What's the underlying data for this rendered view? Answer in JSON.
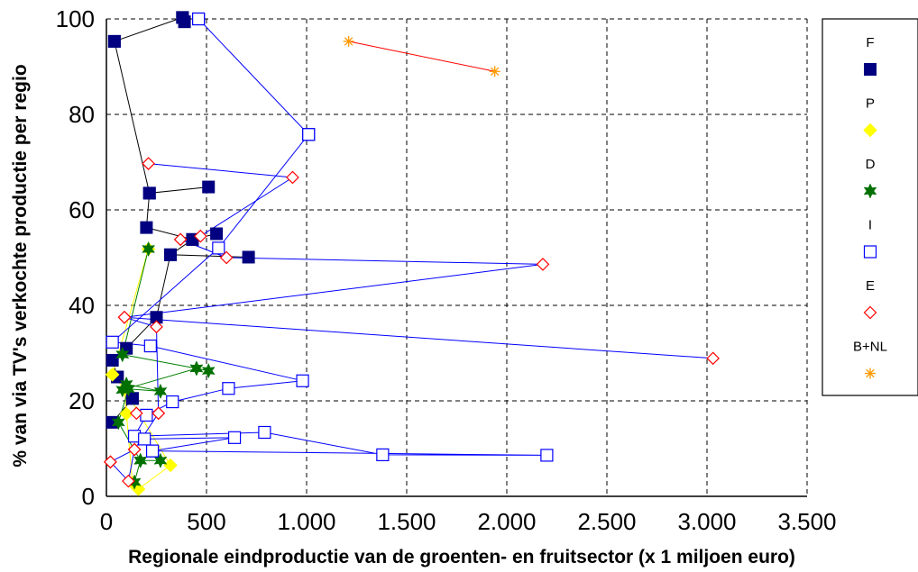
{
  "chart_data": {
    "type": "scatter",
    "title": "",
    "xlabel": "Regionale eindproductie van de groenten- en fruitsector (x 1 miljoen euro)",
    "ylabel": "% van via TV's verkochte productie per regio",
    "xlim": [
      0,
      3500
    ],
    "ylim": [
      0,
      100
    ],
    "x_ticks": [
      0,
      500,
      1000,
      1500,
      2000,
      2500,
      3000,
      3500
    ],
    "x_tick_labels": [
      "0",
      "500",
      "1.000",
      "1.500",
      "2.000",
      "2.500",
      "3.000",
      "3.500"
    ],
    "y_ticks": [
      0,
      20,
      40,
      60,
      80,
      100
    ],
    "y_tick_labels": [
      "0",
      "20",
      "40",
      "60",
      "80",
      "100"
    ],
    "grid": "dashed",
    "legend_position": "right",
    "series": [
      {
        "name": "F",
        "marker": "filled-square",
        "color": "#000080",
        "line_color": "#000000",
        "points": [
          [
            40,
            95.3
          ],
          [
            380,
            100.3
          ],
          [
            390,
            99.4
          ],
          [
            380,
            100.3
          ],
          [
            40,
            95.3
          ],
          [
            215,
            63.5
          ],
          [
            510,
            64.8
          ],
          [
            215,
            63.5
          ],
          [
            200,
            56.3
          ],
          [
            430,
            53.8
          ],
          [
            550,
            55.0
          ],
          [
            430,
            53.8
          ],
          [
            320,
            50.6
          ],
          [
            710,
            50.1
          ],
          [
            320,
            50.6
          ],
          [
            250,
            37.5
          ],
          [
            100,
            31.0
          ],
          [
            30,
            28.5
          ],
          [
            55,
            25.0
          ],
          [
            130,
            20.5
          ],
          [
            30,
            15.5
          ],
          [
            130,
            20.5
          ],
          [
            55,
            25.0
          ]
        ]
      },
      {
        "name": "P",
        "marker": "diamond",
        "color": "#FFFF00",
        "line_color": "#FFFF00",
        "points": [
          [
            30,
            25.5
          ],
          [
            210,
            51.8
          ],
          [
            30,
            25.5
          ],
          [
            90,
            22.5
          ],
          [
            320,
            6.5
          ],
          [
            160,
            1.5
          ],
          [
            130,
            2.8
          ],
          [
            100,
            17.3
          ],
          [
            90,
            22.5
          ]
        ]
      },
      {
        "name": "D",
        "marker": "star6",
        "color": "#007000",
        "line_color": "#008000",
        "points": [
          [
            80,
            29.7
          ],
          [
            210,
            51.8
          ],
          [
            80,
            29.7
          ],
          [
            450,
            26.8
          ],
          [
            510,
            26.3
          ],
          [
            450,
            26.8
          ],
          [
            80,
            22.3
          ],
          [
            100,
            23.5
          ],
          [
            270,
            22.0
          ],
          [
            110,
            22.5
          ],
          [
            60,
            15.5
          ],
          [
            170,
            7.5
          ],
          [
            140,
            3.0
          ],
          [
            170,
            7.5
          ],
          [
            270,
            7.5
          ],
          [
            170,
            7.5
          ]
        ]
      },
      {
        "name": "I",
        "marker": "open-square",
        "color": "#0000FF",
        "line_color": "#0000FF",
        "points": [
          [
            460,
            100.0
          ],
          [
            1010,
            75.8
          ],
          [
            460,
            100.0
          ],
          [
            1010,
            75.8
          ],
          [
            560,
            52.0
          ],
          [
            30,
            32.3
          ],
          [
            220,
            31.5
          ],
          [
            980,
            24.2
          ],
          [
            610,
            22.6
          ],
          [
            330,
            19.8
          ],
          [
            200,
            17.0
          ],
          [
            140,
            12.6
          ],
          [
            790,
            13.4
          ],
          [
            1380,
            8.7
          ],
          [
            2200,
            8.6
          ],
          [
            230,
            9.5
          ],
          [
            190,
            12.0
          ],
          [
            640,
            12.3
          ],
          [
            230,
            9.5
          ]
        ]
      },
      {
        "name": "E",
        "marker": "open-diamond",
        "color": "#FF0000",
        "line_color": "#0000FF",
        "points": [
          [
            210,
            69.7
          ],
          [
            930,
            66.8
          ],
          [
            470,
            54.5
          ],
          [
            370,
            53.8
          ],
          [
            600,
            50.0
          ],
          [
            2180,
            48.6
          ],
          [
            90,
            37.5
          ],
          [
            3030,
            28.9
          ],
          [
            90,
            37.5
          ],
          [
            250,
            35.5
          ],
          [
            260,
            17.4
          ],
          [
            150,
            17.4
          ],
          [
            260,
            17.4
          ],
          [
            140,
            9.8
          ],
          [
            20,
            7.2
          ],
          [
            140,
            9.8
          ],
          [
            110,
            3.2
          ],
          [
            20,
            7.2
          ]
        ]
      },
      {
        "name": "B+NL",
        "marker": "asterisk",
        "color": "#FF9900",
        "line_color": "#FF0000",
        "points": [
          [
            1210,
            95.3
          ],
          [
            1940,
            89.0
          ]
        ]
      }
    ]
  }
}
